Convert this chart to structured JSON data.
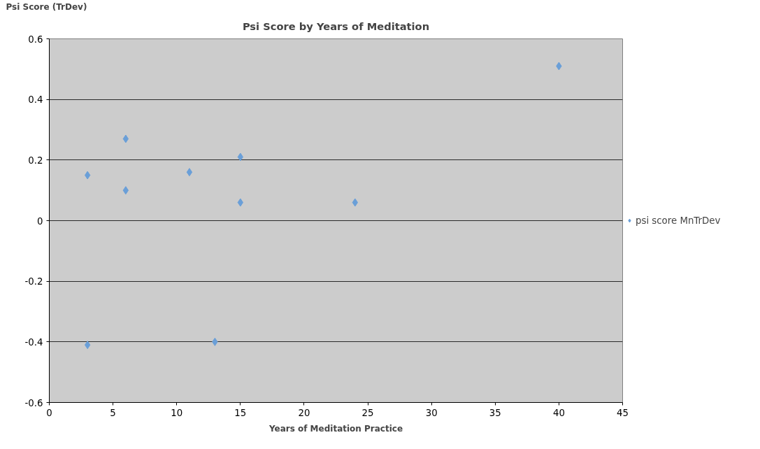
{
  "chart_data": {
    "type": "scatter",
    "title": "Psi Score by Years of Meditation",
    "xlabel": "Years of Meditation Practice",
    "ylabel": "Psi Score (TrDev)",
    "x": [
      3,
      3,
      6,
      6,
      11,
      13,
      15,
      15,
      24,
      40
    ],
    "series": [
      {
        "name": "psi score MnTrDev",
        "color": "#6a9fd8",
        "values": [
          0.15,
          -0.41,
          0.27,
          0.1,
          0.16,
          -0.4,
          0.21,
          0.06,
          0.06,
          0.51
        ]
      }
    ],
    "xlim": [
      0,
      45
    ],
    "xticks": [
      0,
      5,
      10,
      15,
      20,
      25,
      30,
      35,
      40,
      45
    ],
    "ylim": [
      -0.6,
      0.6
    ],
    "yticks": [
      -0.6,
      -0.4,
      -0.2,
      0,
      0.2,
      0.4,
      0.6
    ],
    "grid": "y",
    "legend": "right",
    "marker": "diamond"
  }
}
